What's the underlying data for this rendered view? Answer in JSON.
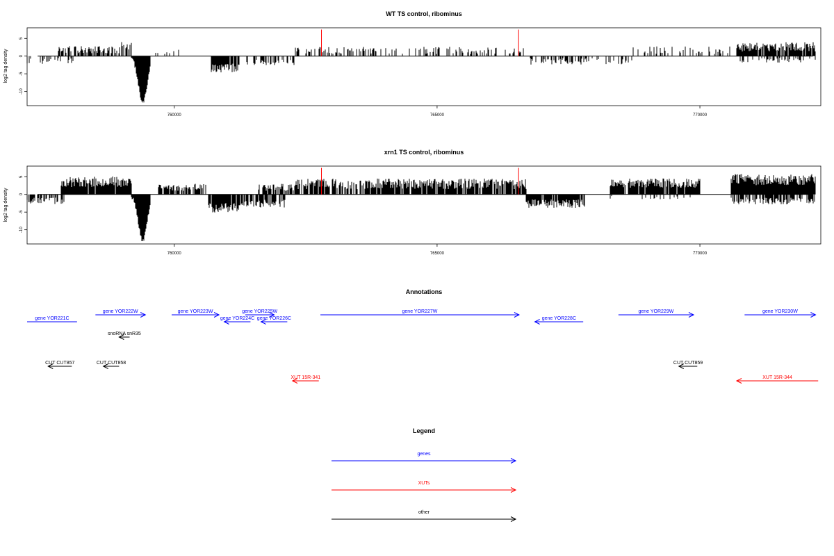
{
  "colors": {
    "gene": "#0000ff",
    "xut": "#ff0000",
    "other": "#000000",
    "highlight": "#ff0000"
  },
  "chart_data": [
    {
      "type": "bar",
      "title": "WT TS control, ribominus",
      "ylabel": "log2 tag density",
      "xlim": [
        757200,
        772300
      ],
      "ylim": [
        -14,
        8
      ],
      "xticks": [
        760000,
        765000,
        770000
      ],
      "xtick_labels": [
        "760000",
        "765000",
        "770000"
      ],
      "yticks": [
        5,
        0,
        -5,
        -10
      ],
      "ytick_labels": [
        "5",
        "0",
        "-5",
        "-10"
      ],
      "highlight_positions": [
        762800,
        766550
      ],
      "highlight_value": 7.5,
      "seed": 7,
      "segments": [
        {
          "start": 757200,
          "end": 758100,
          "strand": "minus",
          "mean": 1.4,
          "spread": 0.8,
          "density": 0.35
        },
        {
          "start": 757800,
          "end": 759000,
          "strand": "plus",
          "mean": 1.8,
          "spread": 1.0,
          "density": 0.6
        },
        {
          "start": 759000,
          "end": 759180,
          "strand": "plus",
          "mean": 2.8,
          "spread": 1.2,
          "density": 0.7
        },
        {
          "start": 759180,
          "end": 759540,
          "strand": "minus",
          "mean": 7.0,
          "spread": 5.0,
          "density": 1.0,
          "peak": 13.0,
          "peak_at": 759400
        },
        {
          "start": 759600,
          "end": 760300,
          "strand": "plus",
          "mean": 1.2,
          "spread": 0.8,
          "density": 0.15
        },
        {
          "start": 760700,
          "end": 761250,
          "strand": "minus",
          "mean": 3.4,
          "spread": 1.3,
          "density": 0.9
        },
        {
          "start": 761300,
          "end": 762300,
          "strand": "minus",
          "mean": 1.8,
          "spread": 0.9,
          "density": 0.4
        },
        {
          "start": 762300,
          "end": 766700,
          "strand": "plus",
          "mean": 1.6,
          "spread": 1.0,
          "density": 0.3
        },
        {
          "start": 766700,
          "end": 768700,
          "strand": "minus",
          "mean": 1.5,
          "spread": 0.9,
          "density": 0.35
        },
        {
          "start": 768700,
          "end": 770800,
          "strand": "plus",
          "mean": 1.7,
          "spread": 1.1,
          "density": 0.3
        },
        {
          "start": 770700,
          "end": 772200,
          "strand": "plus",
          "mean": 2.6,
          "spread": 1.3,
          "density": 0.85
        },
        {
          "start": 770700,
          "end": 772200,
          "strand": "minus",
          "mean": 1.2,
          "spread": 0.7,
          "density": 0.3
        }
      ]
    },
    {
      "type": "bar",
      "title": "xrn1 TS control, ribominus",
      "ylabel": "log2 tag density",
      "xlim": [
        757200,
        772300
      ],
      "ylim": [
        -14,
        8
      ],
      "xticks": [
        760000,
        765000,
        770000
      ],
      "xtick_labels": [
        "760000",
        "765000",
        "770000"
      ],
      "yticks": [
        5,
        0,
        -5,
        -10
      ],
      "ytick_labels": [
        "5",
        "0",
        "-5",
        "-10"
      ],
      "highlight_positions": [
        762800,
        766550
      ],
      "highlight_value": 7.5,
      "seed": 23,
      "segments": [
        {
          "start": 757200,
          "end": 757900,
          "strand": "minus",
          "mean": 1.8,
          "spread": 0.9,
          "density": 0.55
        },
        {
          "start": 757850,
          "end": 759000,
          "strand": "plus",
          "mean": 3.6,
          "spread": 1.5,
          "density": 0.95
        },
        {
          "start": 759000,
          "end": 759180,
          "strand": "plus",
          "mean": 3.5,
          "spread": 1.4,
          "density": 0.9
        },
        {
          "start": 759180,
          "end": 759540,
          "strand": "minus",
          "mean": 7.0,
          "spread": 5.0,
          "density": 1.0,
          "peak": 13.0,
          "peak_at": 759400
        },
        {
          "start": 759700,
          "end": 760600,
          "strand": "plus",
          "mean": 2.0,
          "spread": 1.0,
          "density": 0.7
        },
        {
          "start": 760650,
          "end": 761250,
          "strand": "minus",
          "mean": 3.8,
          "spread": 1.4,
          "density": 0.95
        },
        {
          "start": 761250,
          "end": 762100,
          "strand": "minus",
          "mean": 2.6,
          "spread": 1.1,
          "density": 0.75
        },
        {
          "start": 761600,
          "end": 762300,
          "strand": "plus",
          "mean": 2.0,
          "spread": 1.0,
          "density": 0.6
        },
        {
          "start": 762300,
          "end": 766700,
          "strand": "plus",
          "mean": 3.0,
          "spread": 1.5,
          "density": 0.8
        },
        {
          "start": 766700,
          "end": 767800,
          "strand": "minus",
          "mean": 2.6,
          "spread": 1.2,
          "density": 0.9
        },
        {
          "start": 768300,
          "end": 770000,
          "strand": "plus",
          "mean": 3.2,
          "spread": 1.3,
          "density": 0.9
        },
        {
          "start": 768300,
          "end": 770000,
          "strand": "minus",
          "mean": 1.0,
          "spread": 0.6,
          "density": 0.15
        },
        {
          "start": 770600,
          "end": 772200,
          "strand": "plus",
          "mean": 4.2,
          "spread": 1.6,
          "density": 1.0
        },
        {
          "start": 770600,
          "end": 772200,
          "strand": "minus",
          "mean": 1.8,
          "spread": 1.0,
          "density": 0.6
        }
      ]
    }
  ],
  "annotations": {
    "title": "Annotations",
    "xlim": [
      757200,
      772300
    ],
    "items": [
      {
        "label": "gene YOR221C",
        "type": "gene",
        "start": 757200,
        "end": 758150,
        "dir": "none",
        "row": 1
      },
      {
        "label": "gene YOR222W",
        "type": "gene",
        "start": 758500,
        "end": 759450,
        "dir": "right",
        "row": 0
      },
      {
        "label": "gene YOR223W",
        "type": "gene",
        "start": 759950,
        "end": 760850,
        "dir": "right",
        "row": 0
      },
      {
        "label": "gene YOR224C",
        "type": "gene",
        "start": 760950,
        "end": 761450,
        "dir": "left",
        "row": 1
      },
      {
        "label": "gene YOR225W",
        "type": "gene",
        "start": 761350,
        "end": 761900,
        "dir": "right",
        "row": 0
      },
      {
        "label": "gene YOR226C",
        "type": "gene",
        "start": 761650,
        "end": 762150,
        "dir": "left",
        "row": 1
      },
      {
        "label": "gene YOR227W",
        "type": "gene",
        "start": 762780,
        "end": 766560,
        "dir": "right",
        "row": 0
      },
      {
        "label": "gene YOR228C",
        "type": "gene",
        "start": 766860,
        "end": 767780,
        "dir": "left",
        "row": 1
      },
      {
        "label": "gene YOR229W",
        "type": "gene",
        "start": 768450,
        "end": 769880,
        "dir": "right",
        "row": 0
      },
      {
        "label": "gene YOR230W",
        "type": "gene",
        "start": 770850,
        "end": 772200,
        "dir": "right",
        "row": 0
      },
      {
        "label": "snoRNA snR35",
        "type": "other",
        "start": 758950,
        "end": 759150,
        "dir": "left",
        "row": 2
      },
      {
        "label": "CUT CUT857",
        "type": "other",
        "start": 757600,
        "end": 758050,
        "dir": "left",
        "row": 3
      },
      {
        "label": "CUT CUT858",
        "type": "other",
        "start": 758650,
        "end": 758950,
        "dir": "left",
        "row": 3
      },
      {
        "label": "CUT CUT859",
        "type": "other",
        "start": 769600,
        "end": 769950,
        "dir": "left",
        "row": 3
      },
      {
        "label": "XUT 15R-341",
        "type": "xut",
        "start": 762250,
        "end": 762750,
        "dir": "left",
        "row": 4
      },
      {
        "label": "XUT 15R-344",
        "type": "xut",
        "start": 770700,
        "end": 772250,
        "dir": "left",
        "row": 4
      }
    ]
  },
  "legend": {
    "title": "Legend",
    "items": [
      {
        "label": "genes",
        "type": "gene"
      },
      {
        "label": "XUTs",
        "type": "xut"
      },
      {
        "label": "other",
        "type": "other"
      }
    ]
  }
}
